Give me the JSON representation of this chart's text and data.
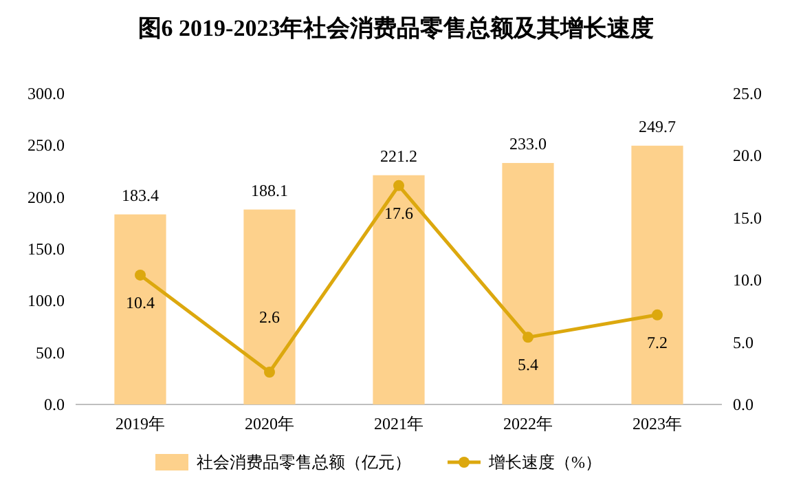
{
  "chart_data": {
    "type": "bar",
    "title": "图6 2019-2023年社会消费品零售总额及其增长速度",
    "categories": [
      "2019年",
      "2020年",
      "2021年",
      "2022年",
      "2023年"
    ],
    "series": [
      {
        "name": "社会消费品零售总额（亿元）",
        "color": "#fdd18c",
        "values": [
          183.4,
          188.1,
          221.2,
          233.0,
          249.7
        ],
        "value_labels": [
          "183.4",
          "188.1",
          "221.2",
          "233.0",
          "249.7"
        ]
      },
      {
        "name": "增长速度（%）",
        "type": "line",
        "axis": "y2",
        "color": "#dca80e",
        "values": [
          10.4,
          2.6,
          17.6,
          5.4,
          7.2
        ],
        "value_labels": [
          "10.4",
          "2.6",
          "17.6",
          "5.4",
          "7.2"
        ]
      }
    ],
    "ylim": [
      0,
      300
    ],
    "yticks": [
      {
        "value": 0,
        "label": "0.0"
      },
      {
        "value": 50,
        "label": "50.0"
      },
      {
        "value": 100,
        "label": "100.0"
      },
      {
        "value": 150,
        "label": "150.0"
      },
      {
        "value": 200,
        "label": "200.0"
      },
      {
        "value": 250,
        "label": "250.0"
      },
      {
        "value": 300,
        "label": "300.0"
      }
    ],
    "y2lim": [
      0,
      25
    ],
    "y2ticks": [
      {
        "value": 0,
        "label": "0.0"
      },
      {
        "value": 5,
        "label": "5.0"
      },
      {
        "value": 10,
        "label": "10.0"
      },
      {
        "value": 15,
        "label": "15.0"
      },
      {
        "value": 20,
        "label": "20.0"
      },
      {
        "value": 25,
        "label": "25.0"
      }
    ],
    "legend": "bottom",
    "marker": "circle",
    "grid": false
  }
}
